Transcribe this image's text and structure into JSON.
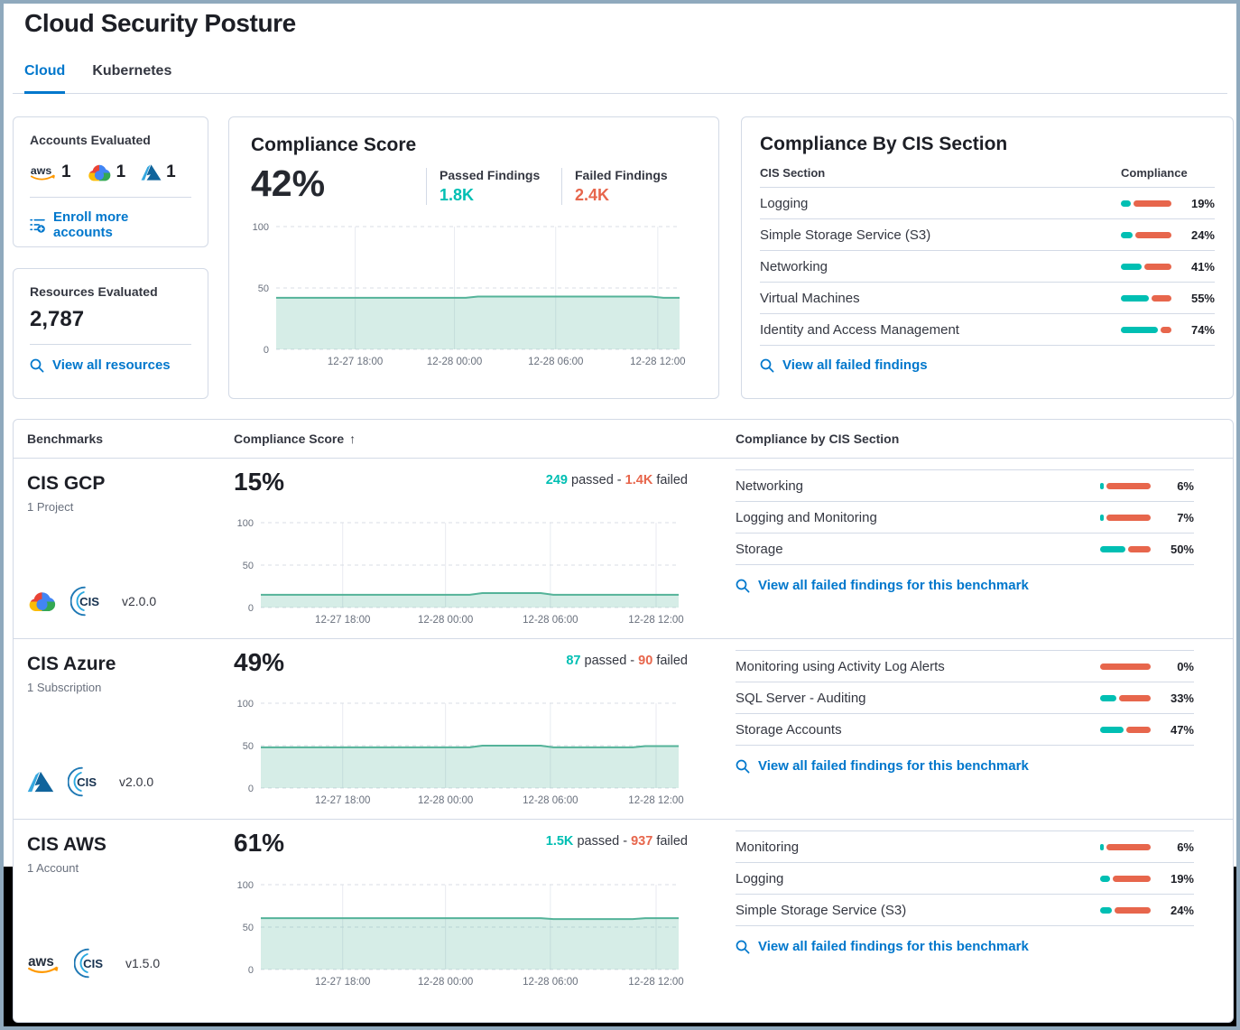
{
  "page": {
    "title": "Cloud Security Posture"
  },
  "tabs": [
    {
      "label": "Cloud",
      "active": true
    },
    {
      "label": "Kubernetes",
      "active": false
    }
  ],
  "colors": {
    "passed": "#00BFB3",
    "failed": "#E7664C",
    "link": "#0077CC",
    "trend_line": "#54B399"
  },
  "icons": {
    "aws_text": "aws",
    "cis_text": "CIS"
  },
  "accounts_card": {
    "title": "Accounts Evaluated",
    "providers": [
      {
        "name": "aws",
        "count": "1"
      },
      {
        "name": "gcp",
        "count": "1"
      },
      {
        "name": "azure",
        "count": "1"
      }
    ],
    "enroll_label": "Enroll more accounts"
  },
  "resources_card": {
    "title": "Resources Evaluated",
    "count": "2,787",
    "link_label": "View all resources"
  },
  "score_card": {
    "title": "Compliance Score",
    "score": "42%",
    "passed_label": "Passed Findings",
    "passed_value": "1.8K",
    "failed_label": "Failed Findings",
    "failed_value": "2.4K"
  },
  "cis_card": {
    "title": "Compliance By CIS Section",
    "col_section": "CIS Section",
    "col_compliance": "Compliance",
    "rows": [
      {
        "label": "Logging",
        "pct": 19,
        "pct_label": "19%"
      },
      {
        "label": "Simple Storage Service (S3)",
        "pct": 24,
        "pct_label": "24%"
      },
      {
        "label": "Networking",
        "pct": 41,
        "pct_label": "41%"
      },
      {
        "label": "Virtual Machines",
        "pct": 55,
        "pct_label": "55%"
      },
      {
        "label": "Identity and Access Management",
        "pct": 74,
        "pct_label": "74%"
      }
    ],
    "link_label": "View all failed findings"
  },
  "benchmarks": {
    "col_benchmarks": "Benchmarks",
    "col_score": "Compliance Score",
    "sort_icon": "↑",
    "col_sections": "Compliance by CIS Section",
    "words": {
      "passed": "passed -",
      "failed": "failed"
    },
    "link_label": "View all failed findings for this benchmark",
    "rows": [
      {
        "name": "CIS GCP",
        "subtitle": "1 Project",
        "provider": "gcp",
        "version": "v2.0.0",
        "score": "15%",
        "passed": "249",
        "failed": "1.4K",
        "sections": [
          {
            "label": "Networking",
            "pct": 6,
            "pct_label": "6%"
          },
          {
            "label": "Logging and Monitoring",
            "pct": 7,
            "pct_label": "7%"
          },
          {
            "label": "Storage",
            "pct": 50,
            "pct_label": "50%"
          }
        ]
      },
      {
        "name": "CIS Azure",
        "subtitle": "1 Subscription",
        "provider": "azure",
        "version": "v2.0.0",
        "score": "49%",
        "passed": "87",
        "failed": "90",
        "sections": [
          {
            "label": "Monitoring using Activity Log Alerts",
            "pct": 0,
            "pct_label": "0%"
          },
          {
            "label": "SQL Server - Auditing",
            "pct": 33,
            "pct_label": "33%"
          },
          {
            "label": "Storage Accounts",
            "pct": 47,
            "pct_label": "47%"
          }
        ]
      },
      {
        "name": "CIS AWS",
        "subtitle": "1 Account",
        "provider": "aws",
        "version": "v1.5.0",
        "score": "61%",
        "passed": "1.5K",
        "failed": "937",
        "sections": [
          {
            "label": "Monitoring",
            "pct": 6,
            "pct_label": "6%"
          },
          {
            "label": "Logging",
            "pct": 19,
            "pct_label": "19%"
          },
          {
            "label": "Simple Storage Service (S3)",
            "pct": 24,
            "pct_label": "24%"
          }
        ]
      }
    ]
  },
  "chart_data": [
    {
      "id": "overall-compliance-trend",
      "type": "area",
      "title": "Compliance Score 42% trend",
      "ylim": [
        0,
        100
      ],
      "y_ticks": [
        0,
        50,
        100
      ],
      "grid": "dashed-horizontal, solid-vertical",
      "x_ticks": [
        {
          "f": 0.196,
          "label": "12-27 18:00"
        },
        {
          "f": 0.442,
          "label": "12-28 00:00"
        },
        {
          "f": 0.693,
          "label": "12-28 06:00"
        },
        {
          "f": 0.946,
          "label": "12-28 12:00"
        }
      ],
      "points": [
        [
          0,
          42
        ],
        [
          0.47,
          42
        ],
        [
          0.5,
          43
        ],
        [
          0.93,
          43
        ],
        [
          0.96,
          42
        ],
        [
          1,
          42
        ]
      ]
    },
    {
      "id": "cis-gcp-trend",
      "type": "area",
      "title": "CIS GCP Compliance Score 15% trend",
      "ylim": [
        0,
        100
      ],
      "y_ticks": [
        0,
        50,
        100
      ],
      "grid": "dashed-horizontal, solid-vertical",
      "x_ticks": [
        {
          "f": 0.196,
          "label": "12-27 18:00"
        },
        {
          "f": 0.442,
          "label": "12-28 00:00"
        },
        {
          "f": 0.693,
          "label": "12-28 06:00"
        },
        {
          "f": 0.946,
          "label": "12-28 12:00"
        }
      ],
      "points": [
        [
          0,
          15
        ],
        [
          0.5,
          15
        ],
        [
          0.53,
          17
        ],
        [
          0.67,
          17
        ],
        [
          0.7,
          15
        ],
        [
          1,
          15
        ]
      ]
    },
    {
      "id": "cis-azure-trend",
      "type": "area",
      "title": "CIS Azure Compliance Score 49% trend",
      "ylim": [
        0,
        100
      ],
      "y_ticks": [
        0,
        50,
        100
      ],
      "grid": "dashed-horizontal, solid-vertical",
      "x_ticks": [
        {
          "f": 0.196,
          "label": "12-27 18:00"
        },
        {
          "f": 0.442,
          "label": "12-28 00:00"
        },
        {
          "f": 0.693,
          "label": "12-28 06:00"
        },
        {
          "f": 0.946,
          "label": "12-28 12:00"
        }
      ],
      "points": [
        [
          0,
          48
        ],
        [
          0.5,
          48
        ],
        [
          0.53,
          50
        ],
        [
          0.67,
          50
        ],
        [
          0.7,
          48
        ],
        [
          0.89,
          48
        ],
        [
          0.92,
          49.5
        ],
        [
          1,
          49.5
        ]
      ]
    },
    {
      "id": "cis-aws-trend",
      "type": "area",
      "title": "CIS AWS Compliance Score 61% trend",
      "ylim": [
        0,
        100
      ],
      "y_ticks": [
        0,
        50,
        100
      ],
      "grid": "dashed-horizontal, solid-vertical",
      "x_ticks": [
        {
          "f": 0.196,
          "label": "12-27 18:00"
        },
        {
          "f": 0.442,
          "label": "12-28 00:00"
        },
        {
          "f": 0.693,
          "label": "12-28 06:00"
        },
        {
          "f": 0.946,
          "label": "12-28 12:00"
        }
      ],
      "points": [
        [
          0,
          60.5
        ],
        [
          0.67,
          60.5
        ],
        [
          0.7,
          59.5
        ],
        [
          0.89,
          59.5
        ],
        [
          0.92,
          60.5
        ],
        [
          1,
          60.5
        ]
      ]
    }
  ]
}
